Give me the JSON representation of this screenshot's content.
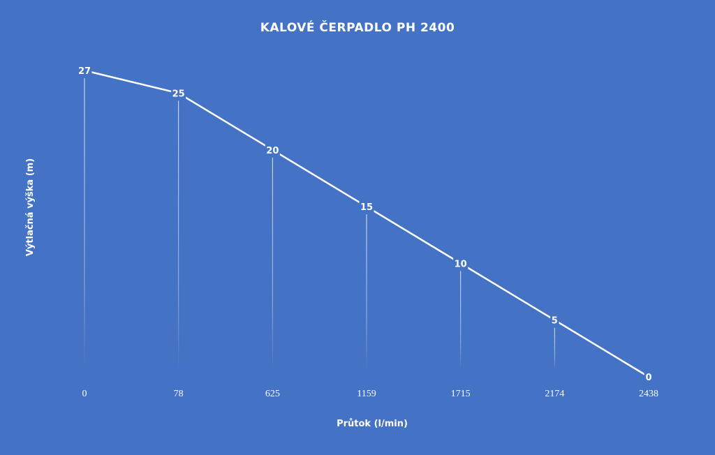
{
  "chart_data": {
    "type": "line",
    "title": "KALOVÉ ČERPADLO PH 2400",
    "xlabel": "Průtok (l/min)",
    "ylabel": "Výtlačná výška (m)",
    "categories": [
      "0",
      "78",
      "625",
      "1159",
      "1715",
      "2174",
      "2438"
    ],
    "series": [
      {
        "values": [
          27,
          25,
          20,
          15,
          10,
          5,
          0
        ]
      }
    ],
    "ylim": [
      0,
      27
    ],
    "data_labels": true,
    "drop_lines": true,
    "grid": false,
    "legend": "none",
    "colors": {
      "background": "#4472c4",
      "line": "#ffffff",
      "text": "#ffffff"
    }
  }
}
